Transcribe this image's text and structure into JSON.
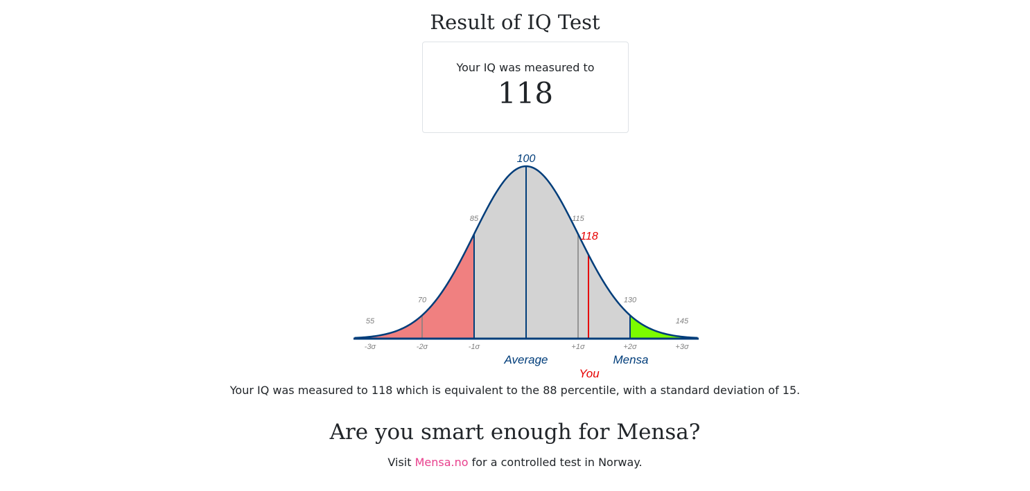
{
  "header": {
    "title": "Result of IQ Test"
  },
  "result_card": {
    "label": "Your IQ was measured to",
    "value": "118"
  },
  "chart_data": {
    "type": "area",
    "distribution": "normal",
    "mean": 100,
    "sd": 15,
    "score": 118,
    "xlim": [
      55,
      145
    ],
    "regions": [
      {
        "from": 55,
        "to": 85,
        "color": "#f08080"
      },
      {
        "from": 85,
        "to": 130,
        "color": "#d3d3d3"
      },
      {
        "from": 130,
        "to": 145,
        "color": "#7cfc00"
      }
    ],
    "sd_marks": [
      {
        "iq": "55",
        "sigma": "-3σ"
      },
      {
        "iq": "70",
        "sigma": "-2σ"
      },
      {
        "iq": "85",
        "sigma": "-1σ"
      },
      {
        "iq": "100",
        "sigma": ""
      },
      {
        "iq": "115",
        "sigma": "+1σ"
      },
      {
        "iq": "130",
        "sigma": "+2σ"
      },
      {
        "iq": "145",
        "sigma": "+3σ"
      }
    ],
    "you_label": "You",
    "average_label": "Average",
    "mensa_label": "Mensa",
    "curve_color": "#003d7a",
    "you_color": "#e60000",
    "tick_color": "#808080"
  },
  "summary": "Your IQ was measured to 118 which is equivalent to the 88 percentile, with a standard deviation of 15.",
  "mensa_section": {
    "heading": "Are you smart enough for Mensa?",
    "visit_prefix": "Visit ",
    "link_text": "Mensa.no",
    "visit_suffix": " for a controlled test in Norway."
  }
}
